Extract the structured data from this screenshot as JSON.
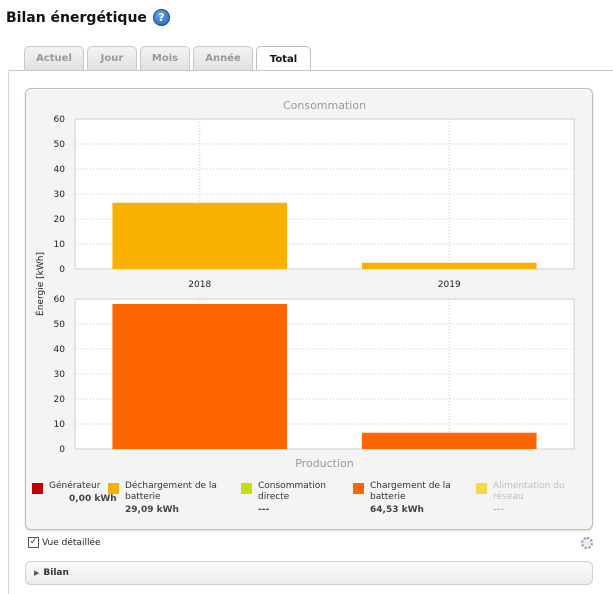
{
  "header": {
    "title": "Bilan énergétique",
    "help_icon": "question-circle-icon"
  },
  "tabs": [
    {
      "label": "Actuel",
      "active": false
    },
    {
      "label": "Jour",
      "active": false
    },
    {
      "label": "Mois",
      "active": false
    },
    {
      "label": "Année",
      "active": false
    },
    {
      "label": "Total",
      "active": true
    }
  ],
  "chart_data": [
    {
      "type": "bar",
      "title": "Consommation",
      "ylabel": "Énergie [kWh]",
      "categories": [
        "2018",
        "2019"
      ],
      "series": [
        {
          "name": "Déchargement de la batterie",
          "color": "#f9b000",
          "values": [
            26.5,
            2.5
          ]
        }
      ],
      "ylim": [
        0,
        60
      ],
      "yticks": [
        0,
        10,
        20,
        30,
        40,
        50,
        60
      ],
      "grid": true
    },
    {
      "type": "bar",
      "title": "Production",
      "ylabel": "Énergie [kWh]",
      "categories": [
        "2018",
        "2019"
      ],
      "series": [
        {
          "name": "Chargement de la batterie",
          "color": "#ff6600",
          "values": [
            58,
            6.5
          ]
        }
      ],
      "ylim": [
        0,
        60
      ],
      "yticks": [
        0,
        10,
        20,
        30,
        40,
        50,
        60
      ],
      "grid": true
    }
  ],
  "legend": [
    {
      "label": "Générateur",
      "value": "0,00 kWh",
      "color": "#c00000",
      "enabled": true
    },
    {
      "label": "Déchargement de la batterie",
      "value": "29,09 kWh",
      "color": "#f9b000",
      "enabled": true
    },
    {
      "label": "Consommation directe",
      "value": "---",
      "color": "#c8dc14",
      "enabled": true
    },
    {
      "label": "Chargement de la batterie",
      "value": "64,53 kWh",
      "color": "#ff6600",
      "enabled": true
    },
    {
      "label": "Alimentation du réseau",
      "value": "---",
      "color": "#f5d94a",
      "enabled": false
    }
  ],
  "detail_view": {
    "label": "Vue détaillée",
    "checked": true
  },
  "bilan_section": {
    "label": "Bilan"
  }
}
